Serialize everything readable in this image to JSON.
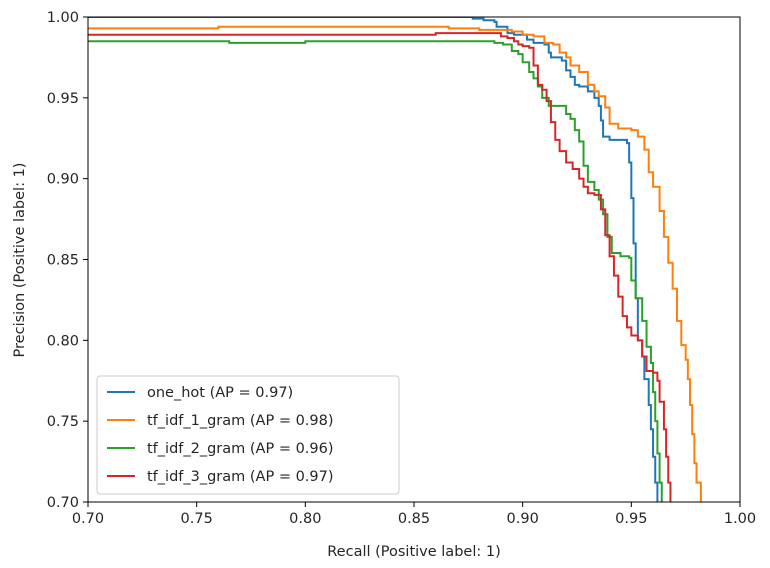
{
  "chart_data": {
    "type": "line",
    "title": "",
    "xlabel": "Recall (Positive label: 1)",
    "ylabel": "Precision (Positive label: 1)",
    "xlim": [
      0.7,
      1.0
    ],
    "ylim": [
      0.7,
      1.0
    ],
    "xticks": [
      "0.70",
      "0.75",
      "0.80",
      "0.85",
      "0.90",
      "0.95",
      "1.00"
    ],
    "yticks": [
      "0.70",
      "0.75",
      "0.80",
      "0.85",
      "0.90",
      "0.95",
      "1.00"
    ],
    "grid": false,
    "legend_position": "lower-left",
    "series": [
      {
        "name": "one_hot (AP = 0.97)",
        "color": "#1f77b4",
        "points": [
          [
            0.7,
            1.0
          ],
          [
            0.807,
            1.0
          ],
          [
            0.876,
            1.0
          ],
          [
            0.877,
            0.999
          ],
          [
            0.882,
            0.998
          ],
          [
            0.887,
            0.997
          ],
          [
            0.888,
            0.994
          ],
          [
            0.893,
            0.99
          ],
          [
            0.896,
            0.989
          ],
          [
            0.902,
            0.986
          ],
          [
            0.905,
            0.984
          ],
          [
            0.908,
            0.984
          ],
          [
            0.91,
            0.983
          ],
          [
            0.912,
            0.978
          ],
          [
            0.913,
            0.975
          ],
          [
            0.918,
            0.973
          ],
          [
            0.92,
            0.967
          ],
          [
            0.922,
            0.963
          ],
          [
            0.924,
            0.958
          ],
          [
            0.926,
            0.957
          ],
          [
            0.93,
            0.954
          ],
          [
            0.933,
            0.95
          ],
          [
            0.935,
            0.945
          ],
          [
            0.936,
            0.936
          ],
          [
            0.937,
            0.926
          ],
          [
            0.94,
            0.924
          ],
          [
            0.945,
            0.924
          ],
          [
            0.948,
            0.922
          ],
          [
            0.949,
            0.91
          ],
          [
            0.95,
            0.888
          ],
          [
            0.951,
            0.86
          ],
          [
            0.952,
            0.826
          ],
          [
            0.953,
            0.8
          ],
          [
            0.955,
            0.79
          ],
          [
            0.956,
            0.776
          ],
          [
            0.958,
            0.76
          ],
          [
            0.959,
            0.745
          ],
          [
            0.96,
            0.728
          ],
          [
            0.961,
            0.712
          ],
          [
            0.962,
            0.7
          ]
        ]
      },
      {
        "name": "tf_idf_1_gram (AP = 0.98)",
        "color": "#ff7f0e",
        "points": [
          [
            0.7,
            0.993
          ],
          [
            0.76,
            0.994
          ],
          [
            0.862,
            0.994
          ],
          [
            0.866,
            0.993
          ],
          [
            0.88,
            0.992
          ],
          [
            0.895,
            0.991
          ],
          [
            0.9,
            0.989
          ],
          [
            0.905,
            0.988
          ],
          [
            0.909,
            0.988
          ],
          [
            0.91,
            0.984
          ],
          [
            0.914,
            0.983
          ],
          [
            0.917,
            0.978
          ],
          [
            0.92,
            0.975
          ],
          [
            0.922,
            0.97
          ],
          [
            0.926,
            0.966
          ],
          [
            0.93,
            0.958
          ],
          [
            0.933,
            0.954
          ],
          [
            0.935,
            0.951
          ],
          [
            0.938,
            0.944
          ],
          [
            0.94,
            0.934
          ],
          [
            0.944,
            0.931
          ],
          [
            0.95,
            0.93
          ],
          [
            0.953,
            0.926
          ],
          [
            0.956,
            0.918
          ],
          [
            0.958,
            0.904
          ],
          [
            0.96,
            0.895
          ],
          [
            0.963,
            0.88
          ],
          [
            0.965,
            0.864
          ],
          [
            0.967,
            0.848
          ],
          [
            0.969,
            0.832
          ],
          [
            0.971,
            0.812
          ],
          [
            0.973,
            0.797
          ],
          [
            0.975,
            0.788
          ],
          [
            0.976,
            0.776
          ],
          [
            0.977,
            0.76
          ],
          [
            0.978,
            0.742
          ],
          [
            0.979,
            0.724
          ],
          [
            0.98,
            0.712
          ],
          [
            0.982,
            0.7
          ]
        ]
      },
      {
        "name": "tf_idf_2_gram (AP = 0.96)",
        "color": "#2ca02c",
        "points": [
          [
            0.7,
            0.985
          ],
          [
            0.73,
            0.985
          ],
          [
            0.765,
            0.984
          ],
          [
            0.8,
            0.985
          ],
          [
            0.88,
            0.985
          ],
          [
            0.887,
            0.984
          ],
          [
            0.891,
            0.983
          ],
          [
            0.895,
            0.979
          ],
          [
            0.898,
            0.977
          ],
          [
            0.9,
            0.972
          ],
          [
            0.903,
            0.966
          ],
          [
            0.905,
            0.962
          ],
          [
            0.907,
            0.957
          ],
          [
            0.909,
            0.95
          ],
          [
            0.912,
            0.945
          ],
          [
            0.918,
            0.945
          ],
          [
            0.92,
            0.94
          ],
          [
            0.922,
            0.937
          ],
          [
            0.924,
            0.93
          ],
          [
            0.926,
            0.923
          ],
          [
            0.928,
            0.908
          ],
          [
            0.93,
            0.898
          ],
          [
            0.933,
            0.893
          ],
          [
            0.935,
            0.887
          ],
          [
            0.937,
            0.878
          ],
          [
            0.939,
            0.864
          ],
          [
            0.941,
            0.854
          ],
          [
            0.945,
            0.852
          ],
          [
            0.949,
            0.851
          ],
          [
            0.95,
            0.837
          ],
          [
            0.952,
            0.826
          ],
          [
            0.955,
            0.812
          ],
          [
            0.957,
            0.796
          ],
          [
            0.959,
            0.786
          ],
          [
            0.96,
            0.768
          ],
          [
            0.961,
            0.75
          ],
          [
            0.962,
            0.73
          ],
          [
            0.963,
            0.712
          ],
          [
            0.964,
            0.7
          ]
        ]
      },
      {
        "name": "tf_idf_3_gram (AP = 0.97)",
        "color": "#d62728",
        "points": [
          [
            0.7,
            0.989
          ],
          [
            0.79,
            0.989
          ],
          [
            0.86,
            0.99
          ],
          [
            0.887,
            0.99
          ],
          [
            0.89,
            0.988
          ],
          [
            0.893,
            0.987
          ],
          [
            0.896,
            0.985
          ],
          [
            0.898,
            0.983
          ],
          [
            0.9,
            0.982
          ],
          [
            0.903,
            0.981
          ],
          [
            0.905,
            0.97
          ],
          [
            0.907,
            0.958
          ],
          [
            0.909,
            0.955
          ],
          [
            0.911,
            0.948
          ],
          [
            0.913,
            0.935
          ],
          [
            0.915,
            0.924
          ],
          [
            0.917,
            0.917
          ],
          [
            0.92,
            0.91
          ],
          [
            0.923,
            0.906
          ],
          [
            0.926,
            0.9
          ],
          [
            0.928,
            0.895
          ],
          [
            0.93,
            0.891
          ],
          [
            0.933,
            0.89
          ],
          [
            0.936,
            0.881
          ],
          [
            0.938,
            0.865
          ],
          [
            0.94,
            0.852
          ],
          [
            0.942,
            0.84
          ],
          [
            0.944,
            0.827
          ],
          [
            0.946,
            0.815
          ],
          [
            0.948,
            0.808
          ],
          [
            0.95,
            0.803
          ],
          [
            0.953,
            0.8
          ],
          [
            0.955,
            0.79
          ],
          [
            0.957,
            0.781
          ],
          [
            0.96,
            0.78
          ],
          [
            0.962,
            0.775
          ],
          [
            0.963,
            0.762
          ],
          [
            0.965,
            0.745
          ],
          [
            0.966,
            0.728
          ],
          [
            0.967,
            0.712
          ],
          [
            0.968,
            0.7
          ]
        ]
      }
    ]
  }
}
